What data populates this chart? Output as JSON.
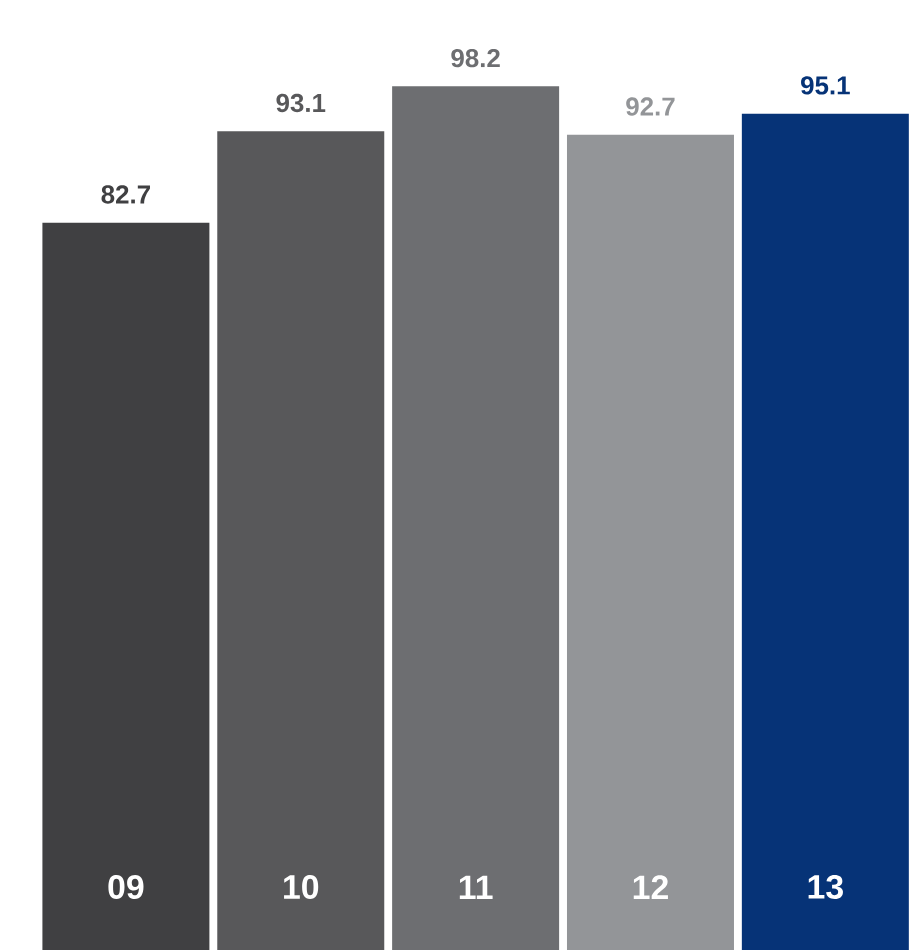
{
  "chart_data": {
    "type": "bar",
    "categories": [
      "09",
      "10",
      "11",
      "12",
      "13"
    ],
    "values": [
      82.7,
      93.1,
      98.2,
      92.7,
      95.1
    ],
    "colors": [
      "#404042",
      "#58585a",
      "#6d6e71",
      "#939598",
      "#063377"
    ],
    "data_labels": true
  }
}
